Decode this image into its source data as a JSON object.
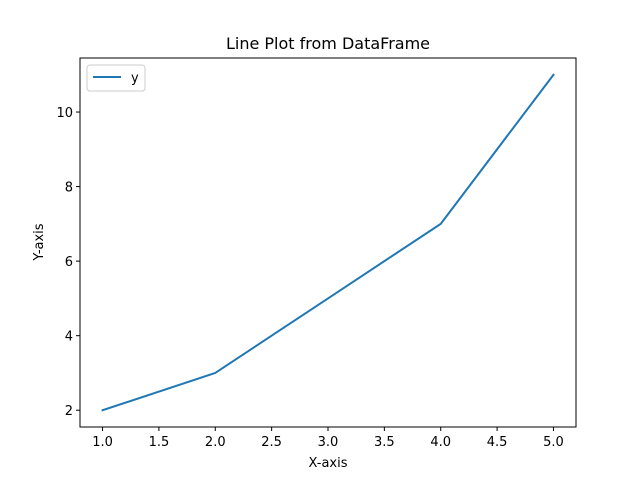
{
  "chart_data": {
    "type": "line",
    "title": "Line Plot from DataFrame",
    "xlabel": "X-axis",
    "ylabel": "Y-axis",
    "x": [
      1,
      2,
      3,
      4,
      5
    ],
    "series": [
      {
        "name": "y",
        "values": [
          2,
          3,
          5,
          7,
          11
        ],
        "color": "#1f77b4"
      }
    ],
    "xlim": [
      0.8,
      5.2
    ],
    "ylim": [
      1.55,
      11.45
    ],
    "xticks": [
      "1.0",
      "1.5",
      "2.0",
      "2.5",
      "3.0",
      "3.5",
      "4.0",
      "4.5",
      "5.0"
    ],
    "yticks": [
      "2",
      "4",
      "6",
      "8",
      "10"
    ],
    "grid": false,
    "legend_position": "upper-left"
  }
}
